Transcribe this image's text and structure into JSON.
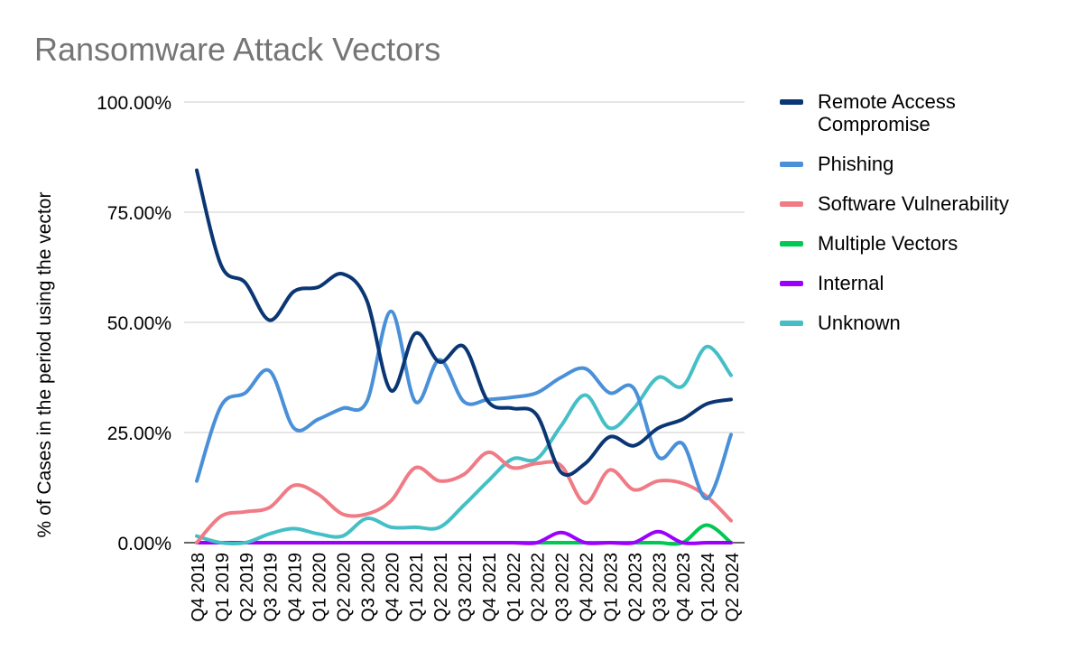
{
  "chart_data": {
    "type": "line",
    "title": "Ransomware Attack Vectors",
    "ylabel": "% of Cases in the period using the vector",
    "xlabel": "",
    "ylim": [
      0,
      100
    ],
    "y_ticks": [
      "0.00%",
      "25.00%",
      "50.00%",
      "75.00%",
      "100.00%"
    ],
    "y_tick_values": [
      0,
      25,
      50,
      75,
      100
    ],
    "grid": true,
    "legend_position": "right",
    "categories": [
      "Q4 2018",
      "Q1 2019",
      "Q2 2019",
      "Q3 2019",
      "Q4 2019",
      "Q1 2020",
      "Q2 2020",
      "Q3 2020",
      "Q4 2020",
      "Q1 2021",
      "Q2 2021",
      "Q3 2021",
      "Q4 2021",
      "Q1 2022",
      "Q2 2022",
      "Q3 2022",
      "Q4 2022",
      "Q1 2023",
      "Q2 2023",
      "Q3 2023",
      "Q4 2023",
      "Q1 2024",
      "Q2 2024"
    ],
    "series": [
      {
        "name": "Remote Access Compromise",
        "color": "#0b3674",
        "values": [
          84.5,
          63,
          59,
          50.5,
          57,
          58,
          61,
          55,
          34.5,
          47.5,
          41,
          44.5,
          32,
          30.5,
          29,
          16,
          18,
          24,
          22,
          26,
          28,
          31.5,
          32.5
        ]
      },
      {
        "name": "Phishing",
        "color": "#4a90d9",
        "values": [
          14,
          31,
          34,
          39,
          26,
          28,
          30.5,
          32,
          52.5,
          32,
          41.5,
          32,
          32.5,
          33,
          34,
          37.5,
          39.5,
          34,
          35,
          19.5,
          22.5,
          10,
          24.5
        ]
      },
      {
        "name": "Software Vulnerability",
        "color": "#f07b85",
        "values": [
          0,
          6,
          7,
          8,
          13,
          11,
          6.5,
          6.5,
          9.5,
          17,
          14,
          15.5,
          20.5,
          17,
          18,
          17.5,
          9,
          16.5,
          12,
          14,
          13.5,
          10.5,
          5
        ]
      },
      {
        "name": "Multiple Vectors",
        "color": "#00c853",
        "values": [
          0,
          0,
          0,
          0,
          0,
          0,
          0,
          0,
          0,
          0,
          0,
          0,
          0,
          0,
          0,
          0,
          0,
          0,
          0,
          0,
          0,
          4,
          0
        ]
      },
      {
        "name": "Internal",
        "color": "#9b00ff",
        "values": [
          0,
          0,
          0,
          0,
          0,
          0,
          0,
          0,
          0,
          0,
          0,
          0,
          0,
          0,
          0,
          2.3,
          0,
          0,
          0,
          2.5,
          0,
          0,
          0
        ]
      },
      {
        "name": "Unknown",
        "color": "#45bfc6",
        "values": [
          1.5,
          0,
          0,
          2,
          3.2,
          2,
          1.5,
          5.5,
          3.5,
          3.5,
          3.5,
          8.5,
          14,
          19,
          19,
          26.5,
          33.5,
          26,
          30.5,
          37.5,
          35.5,
          44.5,
          38
        ]
      }
    ]
  }
}
